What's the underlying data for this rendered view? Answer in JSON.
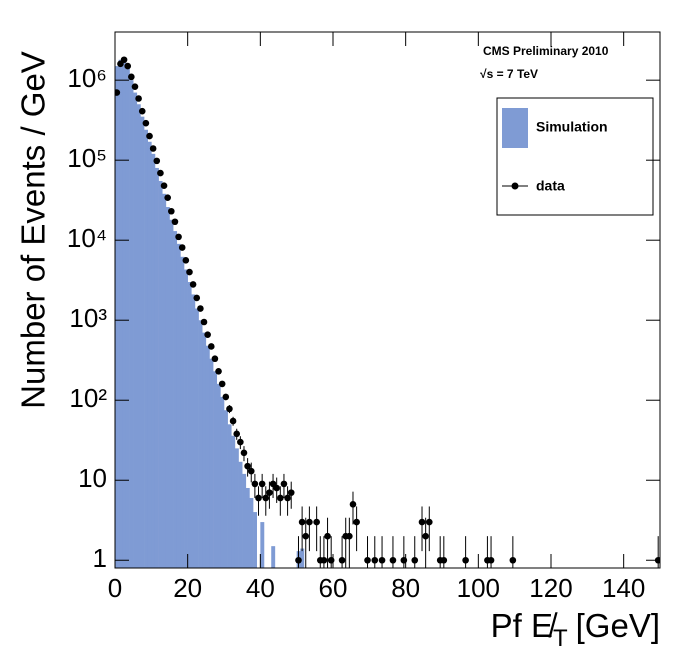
{
  "chart_data": {
    "type": "histogram",
    "annotations": [
      "CMS Preliminary 2010",
      "√s = 7 TeV"
    ],
    "x_label": [
      "Pf E̸",
      "T",
      "[GeV]"
    ],
    "y_label": "Number of Events / GeV",
    "log_y": true,
    "legend": "top-right",
    "xlim": [
      0,
      150
    ],
    "ylim": [
      0.8,
      4000000
    ],
    "xticks": [
      0,
      20,
      40,
      60,
      80,
      100,
      120,
      140
    ],
    "yticks": [
      1,
      10,
      {
        "value": 100,
        "label": "10²"
      },
      {
        "value": 1000,
        "label": "10³"
      },
      {
        "value": 10000,
        "label": "10⁴"
      },
      {
        "value": 100000,
        "label": "10⁵"
      },
      {
        "value": 1000000,
        "label": "10⁶"
      }
    ],
    "series": [
      {
        "name": "Simulation",
        "color": "#7f9bd4",
        "bins": [
          0,
          1,
          2,
          3,
          4,
          5,
          6,
          7,
          8,
          9,
          10,
          11,
          12,
          13,
          14,
          15,
          16,
          17,
          18,
          19,
          20,
          21,
          22,
          23,
          24,
          25,
          26,
          27,
          28,
          29,
          30,
          31,
          32,
          33,
          34,
          35,
          36,
          37,
          38,
          39,
          40,
          41,
          42,
          43,
          44,
          45,
          46,
          47,
          48,
          49,
          50,
          51,
          52
        ],
        "values": [
          1500000,
          1800000,
          1700000,
          1400000,
          1000000,
          700000,
          500000,
          350000,
          240000,
          170000,
          120000,
          80000,
          55000,
          38000,
          26000,
          18000,
          13000,
          9000,
          6200,
          4300,
          3000,
          2100,
          1400,
          1000,
          700,
          480,
          330,
          230,
          160,
          110,
          75,
          50,
          36,
          25,
          17,
          12,
          8,
          6,
          4,
          0,
          3,
          0,
          0,
          1.5,
          0,
          0,
          0,
          0,
          0,
          0,
          1.3,
          1.4
        ]
      },
      {
        "name": "data",
        "color": "#000000",
        "x": [
          0.5,
          1.5,
          2.5,
          3.5,
          4.5,
          5.5,
          6.5,
          7.5,
          8.5,
          9.5,
          10.5,
          11.5,
          12.5,
          13.5,
          14.5,
          15.5,
          16.5,
          17.5,
          18.5,
          19.5,
          20.5,
          21.5,
          22.5,
          23.5,
          24.5,
          25.5,
          26.5,
          27.5,
          28.5,
          29.5,
          30.5,
          31.5,
          32.5,
          33.5,
          34.5,
          35.5,
          36.5,
          37.5,
          38.5,
          39.5,
          40.5,
          41.5,
          42.5,
          43.5,
          44.5,
          45.5,
          46.5,
          47.5,
          48.5,
          50.5,
          51.5,
          52.5,
          53.5,
          55.5,
          56.5,
          57.5,
          58.5,
          59.5,
          62.5,
          63.5,
          64.5,
          65.5,
          66.5,
          69.5,
          71.5,
          73.5,
          76.5,
          79.5,
          82.5,
          84.5,
          85.5,
          86.5,
          89.5,
          90.5,
          96.5,
          102.5,
          103.5,
          109.5,
          149.5
        ],
        "values": [
          700000,
          1600000,
          1800000,
          1500000,
          1100000,
          830000,
          590000,
          410000,
          290000,
          200000,
          140000,
          98000,
          69000,
          48000,
          34000,
          23000,
          17000,
          11000,
          8100,
          5600,
          4000,
          2800,
          1900,
          1400,
          950,
          660,
          470,
          330,
          230,
          160,
          110,
          78,
          55,
          38,
          30,
          22,
          15,
          13,
          9,
          6,
          9,
          6,
          7,
          9,
          8,
          6,
          9,
          6,
          7,
          1,
          3,
          2,
          3,
          3,
          1,
          1,
          2,
          1,
          1,
          2,
          2,
          5,
          3,
          1,
          1,
          1,
          1,
          1,
          1,
          3,
          2,
          3,
          1,
          1,
          1,
          1,
          1,
          1,
          1
        ],
        "errors": [
          840,
          1300,
          1300,
          1200,
          1000,
          910,
          770,
          640,
          540,
          450,
          370,
          310,
          260,
          220,
          180,
          150,
          130,
          100,
          90,
          75,
          63,
          53,
          44,
          37,
          31,
          26,
          22,
          18,
          15,
          13,
          10,
          9,
          7,
          6,
          5.5,
          4.7,
          3.9,
          3.6,
          3,
          2.4,
          3,
          2.4,
          2.6,
          3,
          2.8,
          2.4,
          3,
          2.4,
          2.6,
          1,
          1.7,
          1.4,
          1.7,
          1.7,
          1,
          1,
          1.4,
          1,
          1,
          1.4,
          1.4,
          2.2,
          1.7,
          1,
          1,
          1,
          1,
          1,
          1,
          1.7,
          1.4,
          1.7,
          1,
          1,
          1,
          1,
          1,
          1,
          1
        ]
      }
    ]
  }
}
